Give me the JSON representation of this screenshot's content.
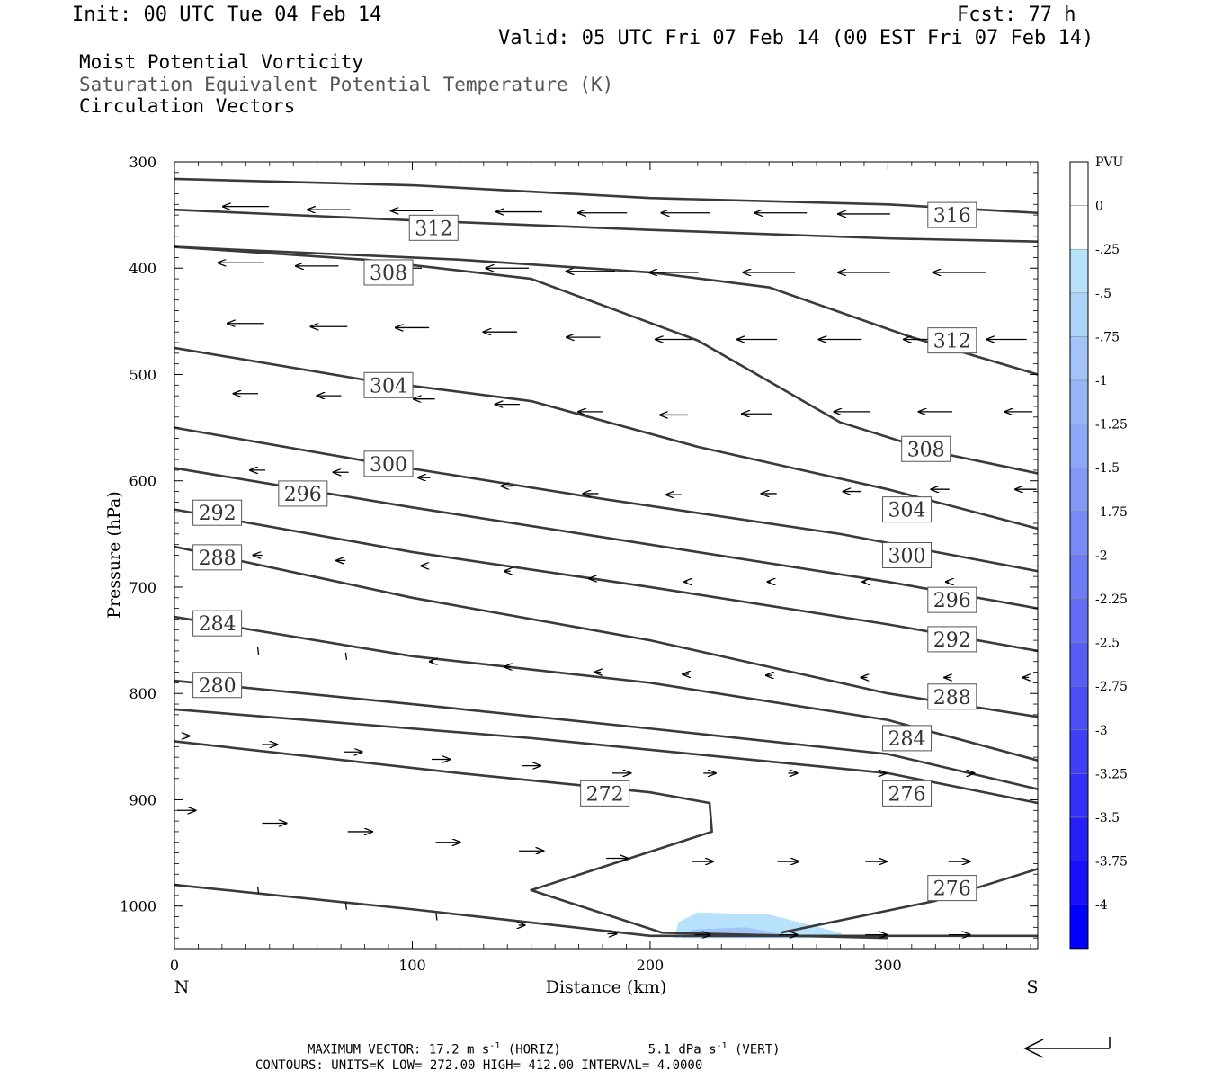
{
  "header": {
    "init": "Init: 00 UTC Tue 04 Feb 14",
    "fcst": "Fcst:   77 h",
    "valid": "Valid: 05 UTC Fri 07 Feb 14 (00 EST Fri 07 Feb 14)",
    "fields": [
      "Moist Potential Vorticity",
      "Saturation Equivalent Potential Temperature (K)",
      "Circulation Vectors"
    ]
  },
  "footer": {
    "max_vector": "MAXIMUM VECTOR:  17.2 m s",
    "max_vector_horiz": " (HORIZ)",
    "max_vector_vert_value": "5.1 dPa s",
    "max_vector_vert": " (VERT)",
    "exp": "-1",
    "contours": "CONTOURS:  UNITS=K  LOW=   272.00       HIGH=  412.00       INTERVAL=     4.0000"
  },
  "colorbar": {
    "unit": "PVU",
    "labels": [
      "0",
      "-.25",
      "-.5",
      "-.75",
      "-1",
      "-1.25",
      "-1.5",
      "-1.75",
      "-2",
      "-2.25",
      "-2.5",
      "-2.75",
      "-3",
      "-3.25",
      "-3.5",
      "-3.75",
      "-4"
    ],
    "colors": [
      "#ffffff",
      "#ffffff",
      "#b8e2fb",
      "#acd3f9",
      "#a2c4f6",
      "#98b6f6",
      "#8da8f5",
      "#8399f5",
      "#788af5",
      "#6d7bf5",
      "#626cf5",
      "#565df5",
      "#4a4ef5",
      "#3f3ff6",
      "#3330f7",
      "#2620f8",
      "#1810fa",
      "#0000ff"
    ]
  },
  "chart_data": {
    "type": "contour",
    "xlabel": "Distance (km)",
    "ylabel": "Pressure (hPa)",
    "xlim": [
      0,
      363
    ],
    "ylim": [
      1040,
      300
    ],
    "x_ticks": [
      0,
      100,
      200,
      300
    ],
    "y_ticks": [
      300,
      400,
      500,
      600,
      700,
      800,
      900,
      1000
    ],
    "x_end_labels": {
      "left": "N",
      "right": "S"
    },
    "contours": [
      {
        "level": 316,
        "points": [
          [
            0,
            316
          ],
          [
            100,
            322
          ],
          [
            200,
            334
          ],
          [
            300,
            340
          ],
          [
            363,
            348
          ]
        ]
      },
      {
        "level": 312,
        "points": [
          [
            0,
            345
          ],
          [
            100,
            355
          ],
          [
            200,
            364
          ],
          [
            300,
            372
          ],
          [
            363,
            375
          ]
        ]
      },
      {
        "level": 308,
        "points": [
          [
            0,
            380
          ],
          [
            80,
            392
          ],
          [
            150,
            410
          ],
          [
            220,
            468
          ],
          [
            280,
            545
          ],
          [
            320,
            573
          ],
          [
            363,
            593
          ]
        ]
      },
      {
        "level": 312,
        "points": [
          [
            0,
            380
          ],
          [
            120,
            392
          ],
          [
            200,
            404
          ],
          [
            250,
            418
          ],
          [
            310,
            465
          ],
          [
            363,
            500
          ]
        ]
      },
      {
        "level": 304,
        "points": [
          [
            0,
            475
          ],
          [
            80,
            505
          ],
          [
            150,
            525
          ],
          [
            220,
            568
          ],
          [
            300,
            608
          ],
          [
            363,
            645
          ]
        ]
      },
      {
        "level": 300,
        "points": [
          [
            0,
            550
          ],
          [
            90,
            585
          ],
          [
            180,
            617
          ],
          [
            280,
            650
          ],
          [
            363,
            685
          ]
        ]
      },
      {
        "level": 296,
        "points": [
          [
            0,
            588
          ],
          [
            100,
            625
          ],
          [
            200,
            660
          ],
          [
            300,
            695
          ],
          [
            363,
            720
          ]
        ]
      },
      {
        "level": 292,
        "points": [
          [
            0,
            627
          ],
          [
            100,
            667
          ],
          [
            200,
            700
          ],
          [
            300,
            735
          ],
          [
            363,
            760
          ]
        ]
      },
      {
        "level": 288,
        "points": [
          [
            0,
            662
          ],
          [
            100,
            710
          ],
          [
            200,
            750
          ],
          [
            300,
            800
          ],
          [
            363,
            822
          ]
        ]
      },
      {
        "level": 284,
        "points": [
          [
            0,
            728
          ],
          [
            100,
            765
          ],
          [
            200,
            790
          ],
          [
            300,
            825
          ],
          [
            363,
            863
          ]
        ]
      },
      {
        "level": 280,
        "points": [
          [
            0,
            788
          ],
          [
            100,
            810
          ],
          [
            200,
            833
          ],
          [
            300,
            857
          ],
          [
            363,
            890
          ]
        ]
      },
      {
        "level": 276,
        "points": [
          [
            0,
            815
          ],
          [
            150,
            842
          ],
          [
            300,
            875
          ],
          [
            363,
            903
          ]
        ]
      },
      {
        "level": 272,
        "points": [
          [
            0,
            845
          ],
          [
            120,
            875
          ],
          [
            200,
            893
          ],
          [
            225,
            903
          ],
          [
            226,
            930
          ],
          [
            150,
            985
          ],
          [
            205,
            1025
          ],
          [
            300,
            1030
          ]
        ]
      },
      {
        "level": 276,
        "points": [
          [
            255,
            1025
          ],
          [
            320,
            995
          ],
          [
            363,
            965
          ]
        ]
      },
      {
        "level": 272,
        "points": [
          [
            0,
            980
          ],
          [
            100,
            1003
          ],
          [
            200,
            1028
          ],
          [
            363,
            1028
          ]
        ]
      }
    ],
    "contour_labels": [
      {
        "text": "312",
        "x": 109,
        "p": 362
      },
      {
        "text": "316",
        "x": 327,
        "p": 350
      },
      {
        "text": "308",
        "x": 90,
        "p": 404
      },
      {
        "text": "312",
        "x": 327,
        "p": 468
      },
      {
        "text": "304",
        "x": 90,
        "p": 510
      },
      {
        "text": "308",
        "x": 316,
        "p": 570
      },
      {
        "text": "300",
        "x": 90,
        "p": 584
      },
      {
        "text": "296",
        "x": 54,
        "p": 612
      },
      {
        "text": "304",
        "x": 308,
        "p": 627
      },
      {
        "text": "292",
        "x": 18,
        "p": 630
      },
      {
        "text": "300",
        "x": 308,
        "p": 670
      },
      {
        "text": "288",
        "x": 18,
        "p": 672
      },
      {
        "text": "296",
        "x": 327,
        "p": 712
      },
      {
        "text": "284",
        "x": 18,
        "p": 734
      },
      {
        "text": "292",
        "x": 327,
        "p": 749
      },
      {
        "text": "280",
        "x": 18,
        "p": 792
      },
      {
        "text": "288",
        "x": 327,
        "p": 803
      },
      {
        "text": "284",
        "x": 308,
        "p": 842
      },
      {
        "text": "272",
        "x": 181,
        "p": 894
      },
      {
        "text": "276",
        "x": 308,
        "p": 894
      },
      {
        "text": "276",
        "x": 327,
        "p": 983
      }
    ],
    "pv_shading": {
      "levels": [
        -0.25,
        -0.5
      ],
      "region": "x 210-280 km, p 1005-1030 hPa"
    },
    "vectors": [
      {
        "x": 30,
        "p": 342,
        "u": -15,
        "v": 0
      },
      {
        "x": 65,
        "p": 345,
        "u": -14,
        "v": 0
      },
      {
        "x": 100,
        "p": 346,
        "u": -14,
        "v": 0
      },
      {
        "x": 145,
        "p": 347,
        "u": -15,
        "v": 0
      },
      {
        "x": 180,
        "p": 348,
        "u": -16,
        "v": 0
      },
      {
        "x": 215,
        "p": 348,
        "u": -16,
        "v": 0
      },
      {
        "x": 255,
        "p": 348,
        "u": -17,
        "v": 0
      },
      {
        "x": 290,
        "p": 349,
        "u": -17,
        "v": 0
      },
      {
        "x": 28,
        "p": 395,
        "u": -15,
        "v": 0
      },
      {
        "x": 60,
        "p": 398,
        "u": -14,
        "v": 0
      },
      {
        "x": 95,
        "p": 400,
        "u": -14,
        "v": 0
      },
      {
        "x": 140,
        "p": 400,
        "u": -14,
        "v": 0
      },
      {
        "x": 175,
        "p": 403,
        "u": -16,
        "v": 0
      },
      {
        "x": 210,
        "p": 404,
        "u": -16,
        "v": 0
      },
      {
        "x": 250,
        "p": 404,
        "u": -17,
        "v": 0
      },
      {
        "x": 290,
        "p": 404,
        "u": -17,
        "v": 0
      },
      {
        "x": 330,
        "p": 404,
        "u": -17.2,
        "v": 0
      },
      {
        "x": 30,
        "p": 452,
        "u": -12,
        "v": 0
      },
      {
        "x": 65,
        "p": 455,
        "u": -12,
        "v": 0
      },
      {
        "x": 100,
        "p": 456,
        "u": -11,
        "v": 0
      },
      {
        "x": 137,
        "p": 460,
        "u": -11,
        "v": 0
      },
      {
        "x": 172,
        "p": 465,
        "u": -11,
        "v": 0
      },
      {
        "x": 210,
        "p": 467,
        "u": -12,
        "v": 0
      },
      {
        "x": 245,
        "p": 467,
        "u": -13,
        "v": 0
      },
      {
        "x": 280,
        "p": 467,
        "u": -14,
        "v": 0
      },
      {
        "x": 315,
        "p": 467,
        "u": -13,
        "v": 0
      },
      {
        "x": 350,
        "p": 467,
        "u": -13,
        "v": 0
      },
      {
        "x": 30,
        "p": 518,
        "u": -8,
        "v": 0
      },
      {
        "x": 65,
        "p": 520,
        "u": -8,
        "v": 0
      },
      {
        "x": 105,
        "p": 523,
        "u": -7,
        "v": 0
      },
      {
        "x": 140,
        "p": 528,
        "u": -8,
        "v": 0
      },
      {
        "x": 175,
        "p": 535,
        "u": -8,
        "v": 0
      },
      {
        "x": 210,
        "p": 538,
        "u": -9,
        "v": 0
      },
      {
        "x": 245,
        "p": 537,
        "u": -10,
        "v": 0
      },
      {
        "x": 285,
        "p": 535,
        "u": -12,
        "v": 0
      },
      {
        "x": 320,
        "p": 535,
        "u": -11,
        "v": 0
      },
      {
        "x": 355,
        "p": 535,
        "u": -9,
        "v": 0
      },
      {
        "x": 35,
        "p": 590,
        "u": -5,
        "v": 0
      },
      {
        "x": 70,
        "p": 592,
        "u": -5,
        "v": 0
      },
      {
        "x": 105,
        "p": 597,
        "u": -4,
        "v": 0
      },
      {
        "x": 140,
        "p": 605,
        "u": -4,
        "v": 0
      },
      {
        "x": 175,
        "p": 612,
        "u": -5,
        "v": 0
      },
      {
        "x": 210,
        "p": 613,
        "u": -5,
        "v": 0
      },
      {
        "x": 250,
        "p": 612,
        "u": -5,
        "v": 0
      },
      {
        "x": 285,
        "p": 610,
        "u": -6,
        "v": 0
      },
      {
        "x": 322,
        "p": 608,
        "u": -6,
        "v": 0
      },
      {
        "x": 358,
        "p": 608,
        "u": -7,
        "v": 0
      },
      {
        "x": 35,
        "p": 670,
        "u": -3,
        "v": 0
      },
      {
        "x": 70,
        "p": 675,
        "u": -3,
        "v": 0
      },
      {
        "x": 105,
        "p": 680,
        "u": -2,
        "v": 0
      },
      {
        "x": 140,
        "p": 685,
        "u": -2,
        "v": 0
      },
      {
        "x": 175,
        "p": 692,
        "u": -1,
        "v": 0
      },
      {
        "x": 215,
        "p": 695,
        "u": -1,
        "v": 0
      },
      {
        "x": 250,
        "p": 695,
        "u": -1,
        "v": 0
      },
      {
        "x": 290,
        "p": 695,
        "u": -1,
        "v": 0
      },
      {
        "x": 325,
        "p": 695,
        "u": -1,
        "v": 0
      },
      {
        "x": 35,
        "p": 760,
        "u": 0,
        "v": 0
      },
      {
        "x": 72,
        "p": 765,
        "u": 0,
        "v": 0
      },
      {
        "x": 108,
        "p": 770,
        "u": -1,
        "v": 0
      },
      {
        "x": 140,
        "p": 775,
        "u": -2,
        "v": 0
      },
      {
        "x": 178,
        "p": 780,
        "u": -2,
        "v": 0
      },
      {
        "x": 215,
        "p": 782,
        "u": -2,
        "v": 0
      },
      {
        "x": 250,
        "p": 783,
        "u": -2,
        "v": 0
      },
      {
        "x": 290,
        "p": 785,
        "u": -2,
        "v": 0
      },
      {
        "x": 325,
        "p": 785,
        "u": -2,
        "v": 0
      },
      {
        "x": 358,
        "p": 785,
        "u": -2,
        "v": 0
      },
      {
        "x": 5,
        "p": 840,
        "u": 2,
        "v": 0
      },
      {
        "x": 40,
        "p": 848,
        "u": 5,
        "v": 0
      },
      {
        "x": 75,
        "p": 855,
        "u": 6,
        "v": 0
      },
      {
        "x": 112,
        "p": 862,
        "u": 6,
        "v": 0
      },
      {
        "x": 150,
        "p": 868,
        "u": 6,
        "v": 0
      },
      {
        "x": 188,
        "p": 875,
        "u": 6,
        "v": 0
      },
      {
        "x": 225,
        "p": 875,
        "u": 4,
        "v": 0
      },
      {
        "x": 260,
        "p": 875,
        "u": 3,
        "v": 0
      },
      {
        "x": 298,
        "p": 875,
        "u": 2,
        "v": 0
      },
      {
        "x": 335,
        "p": 875,
        "u": 2,
        "v": 0
      },
      {
        "x": 5,
        "p": 910,
        "u": 6,
        "v": 0
      },
      {
        "x": 42,
        "p": 922,
        "u": 8,
        "v": 0
      },
      {
        "x": 78,
        "p": 930,
        "u": 8,
        "v": 0
      },
      {
        "x": 115,
        "p": 940,
        "u": 8,
        "v": 0
      },
      {
        "x": 150,
        "p": 948,
        "u": 8,
        "v": 0
      },
      {
        "x": 186,
        "p": 955,
        "u": 7,
        "v": 0
      },
      {
        "x": 222,
        "p": 958,
        "u": 7,
        "v": 0
      },
      {
        "x": 258,
        "p": 958,
        "u": 7,
        "v": 0
      },
      {
        "x": 295,
        "p": 958,
        "u": 7,
        "v": 0
      },
      {
        "x": 330,
        "p": 958,
        "u": 7,
        "v": 0
      },
      {
        "x": 35,
        "p": 985,
        "u": 0,
        "v": 0
      },
      {
        "x": 72,
        "p": 1000,
        "u": 0,
        "v": 0
      },
      {
        "x": 110,
        "p": 1010,
        "u": 0,
        "v": 0
      },
      {
        "x": 146,
        "p": 1018,
        "u": 2,
        "v": 0
      },
      {
        "x": 184,
        "p": 1026,
        "u": 3,
        "v": 0
      },
      {
        "x": 222,
        "p": 1027,
        "u": 5,
        "v": 0
      },
      {
        "x": 258,
        "p": 1027,
        "u": 6,
        "v": 0
      },
      {
        "x": 295,
        "p": 1027,
        "u": 7,
        "v": 0
      },
      {
        "x": 330,
        "p": 1027,
        "u": 7,
        "v": 0
      }
    ]
  }
}
